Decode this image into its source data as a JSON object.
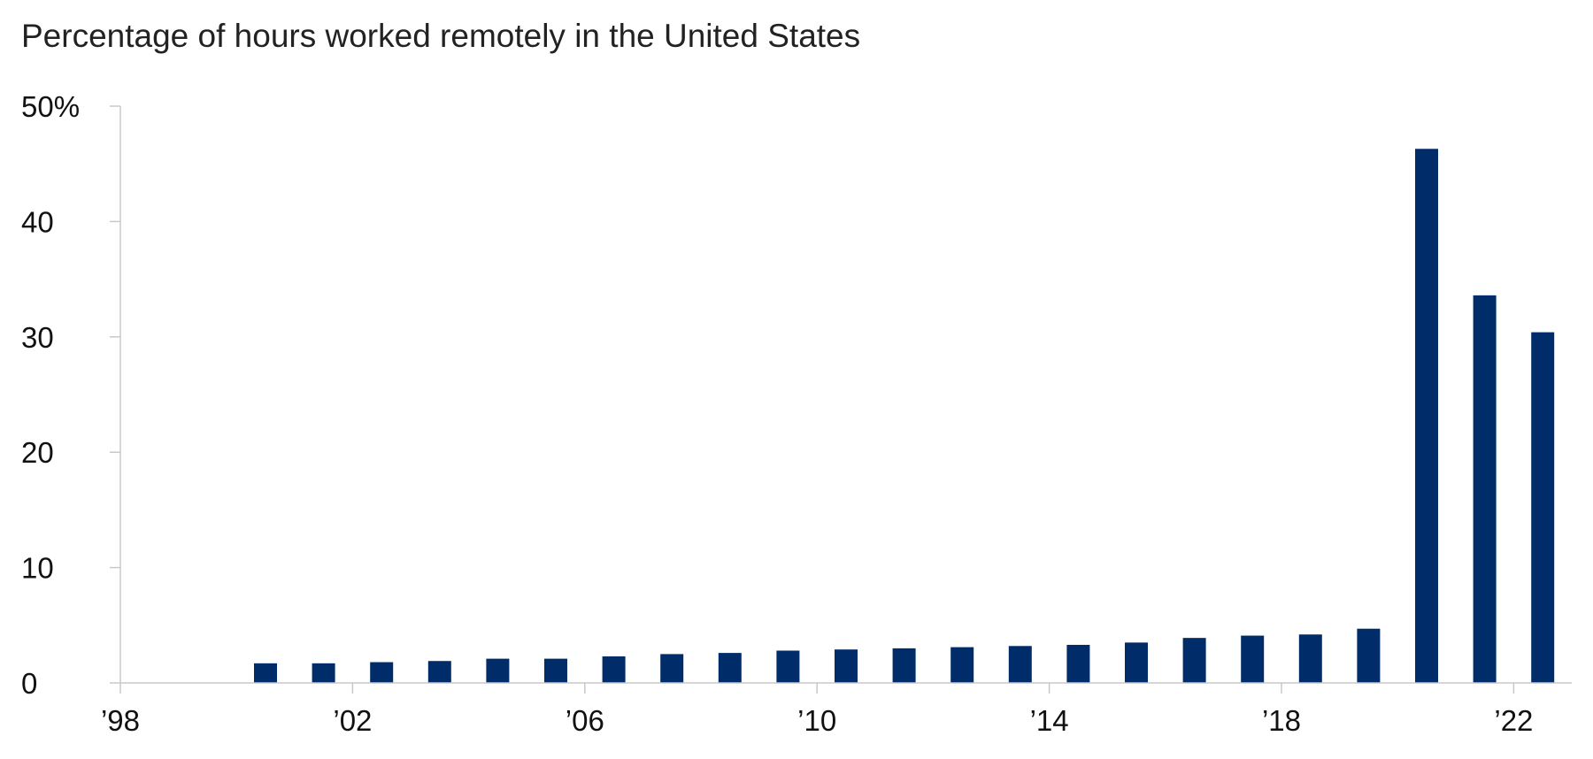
{
  "chart_data": {
    "type": "bar",
    "title": "Percentage of hours worked remotely in the United States",
    "xlabel": "",
    "ylabel": "",
    "ylim": [
      0,
      50
    ],
    "xlim": [
      1998,
      2023
    ],
    "y_ticks": [
      0,
      10,
      20,
      30,
      40,
      50
    ],
    "y_tick_labels": [
      "0",
      "10",
      "20",
      "30",
      "40",
      "50%"
    ],
    "x_ticks": [
      1998,
      2002,
      2006,
      2010,
      2014,
      2018,
      2022
    ],
    "x_tick_labels": [
      "’98",
      "’02",
      "’06",
      "’10",
      "’14",
      "’18",
      "’22"
    ],
    "categories": [
      2000,
      2001,
      2002,
      2003,
      2004,
      2005,
      2006,
      2007,
      2008,
      2009,
      2010,
      2011,
      2012,
      2013,
      2014,
      2015,
      2016,
      2017,
      2018,
      2019,
      2020,
      2021,
      2022
    ],
    "values": [
      1.7,
      1.7,
      1.8,
      1.9,
      2.1,
      2.1,
      2.3,
      2.5,
      2.6,
      2.8,
      2.9,
      3.0,
      3.1,
      3.2,
      3.3,
      3.5,
      3.9,
      4.1,
      4.2,
      4.7,
      46.3,
      33.6,
      30.4
    ],
    "bar_color": "#002d6a",
    "axis_color": "#c8c8c8",
    "grid": false
  }
}
